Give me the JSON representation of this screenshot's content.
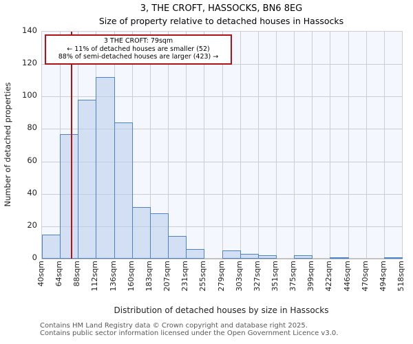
{
  "chart_data": {
    "type": "bar",
    "title": "3, THE CROFT, HASSOCKS, BN6 8EG",
    "subtitle": "Size of property relative to detached houses in Hassocks",
    "xlabel": "Distribution of detached houses by size in Hassocks",
    "ylabel": "Number of detached properties",
    "ylim": [
      0,
      140
    ],
    "yticks": [
      0,
      20,
      40,
      60,
      80,
      100,
      120,
      140
    ],
    "grid": true,
    "legend": "none",
    "bin_edges_sqm": [
      40,
      64,
      88,
      112,
      136,
      160,
      183,
      207,
      231,
      255,
      279,
      303,
      327,
      351,
      375,
      399,
      422,
      446,
      470,
      494,
      518
    ],
    "x_tick_labels": [
      "40sqm",
      "64sqm",
      "88sqm",
      "112sqm",
      "136sqm",
      "160sqm",
      "183sqm",
      "207sqm",
      "231sqm",
      "255sqm",
      "279sqm",
      "303sqm",
      "327sqm",
      "351sqm",
      "375sqm",
      "399sqm",
      "422sqm",
      "446sqm",
      "470sqm",
      "494sqm",
      "518sqm"
    ],
    "values": [
      15,
      77,
      98,
      112,
      84,
      32,
      28,
      14,
      6,
      0,
      5,
      3,
      2,
      0,
      2,
      0,
      1,
      0,
      0,
      1
    ],
    "marker": {
      "sqm": 79,
      "color": "#b01218"
    },
    "colors": {
      "bar_fill": "#d6e2f4",
      "bar_fill_rgba": "rgba(184,205,236,0.55)",
      "bar_edge": "#4d82c8",
      "plot_bg": "#f4f7fd",
      "grid": "#cdcdcd",
      "marker": "#b01218"
    }
  },
  "annotation": {
    "line1": "3 THE CROFT: 79sqm",
    "line2": "← 11% of detached houses are smaller (52)",
    "line3": "88% of semi-detached houses are larger (423) →"
  },
  "footer": {
    "line1": "Contains HM Land Registry data © Crown copyright and database right 2025.",
    "line2": "Contains public sector information licensed under the Open Government Licence v3.0."
  }
}
